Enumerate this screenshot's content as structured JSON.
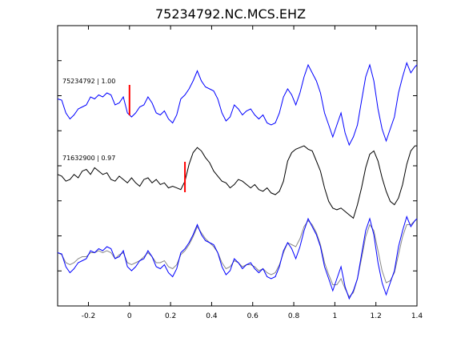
{
  "chart_data": {
    "type": "line",
    "title": "75234792.NC.MCS.EHZ",
    "xlim": [
      -0.35,
      1.4
    ],
    "xticks": [
      -0.2,
      0,
      0.2,
      0.4,
      0.6,
      0.8,
      1,
      1.2,
      1.4
    ],
    "xtick_labels": [
      "-0.2",
      "0",
      "0.2",
      "0.4",
      "0.6",
      "0.8",
      "1",
      "1.2",
      "1.4"
    ],
    "y_tick_count": 7,
    "grid": false,
    "traces": [
      {
        "label": "75234792 | 1.00",
        "color": "#0000ff",
        "pick_x": 0.0,
        "x": [
          -0.35,
          -0.33,
          -0.31,
          -0.29,
          -0.27,
          -0.25,
          -0.23,
          -0.21,
          -0.19,
          -0.17,
          -0.15,
          -0.13,
          -0.11,
          -0.09,
          -0.07,
          -0.05,
          -0.03,
          -0.01,
          0.01,
          0.03,
          0.05,
          0.07,
          0.09,
          0.11,
          0.13,
          0.15,
          0.17,
          0.19,
          0.21,
          0.23,
          0.25,
          0.27,
          0.29,
          0.31,
          0.33,
          0.35,
          0.37,
          0.39,
          0.41,
          0.43,
          0.45,
          0.47,
          0.49,
          0.51,
          0.53,
          0.55,
          0.57,
          0.59,
          0.61,
          0.63,
          0.65,
          0.67,
          0.69,
          0.71,
          0.73,
          0.75,
          0.77,
          0.79,
          0.81,
          0.83,
          0.85,
          0.87,
          0.89,
          0.91,
          0.93,
          0.95,
          0.97,
          0.99,
          1.01,
          1.03,
          1.05,
          1.07,
          1.09,
          1.11,
          1.13,
          1.15,
          1.17,
          1.19,
          1.21,
          1.23,
          1.25,
          1.27,
          1.29,
          1.31,
          1.33,
          1.35,
          1.37,
          1.39,
          1.4
        ],
        "y": [
          0.05,
          0.02,
          -0.3,
          -0.45,
          -0.35,
          -0.2,
          -0.15,
          -0.1,
          0.1,
          0.05,
          0.15,
          0.1,
          0.2,
          0.15,
          -0.1,
          -0.05,
          0.1,
          -0.3,
          -0.4,
          -0.3,
          -0.15,
          -0.1,
          0.1,
          -0.05,
          -0.3,
          -0.35,
          -0.25,
          -0.45,
          -0.55,
          -0.35,
          0.05,
          0.15,
          0.3,
          0.5,
          0.75,
          0.5,
          0.35,
          0.3,
          0.25,
          0.05,
          -0.3,
          -0.5,
          -0.4,
          -0.1,
          -0.2,
          -0.35,
          -0.25,
          -0.2,
          -0.35,
          -0.45,
          -0.35,
          -0.55,
          -0.6,
          -0.55,
          -0.3,
          0.1,
          0.3,
          0.15,
          -0.1,
          0.2,
          0.6,
          0.9,
          0.7,
          0.5,
          0.2,
          -0.3,
          -0.6,
          -0.9,
          -0.6,
          -0.3,
          -0.8,
          -1.1,
          -0.9,
          -0.6,
          0.0,
          0.6,
          0.9,
          0.5,
          -0.2,
          -0.7,
          -1.0,
          -0.7,
          -0.4,
          0.2,
          0.6,
          0.95,
          0.7,
          0.85,
          0.9
        ]
      },
      {
        "label": "71632900 | 0.97",
        "color": "#000000",
        "pick_x": 0.27,
        "x": [
          -0.35,
          -0.33,
          -0.31,
          -0.29,
          -0.27,
          -0.25,
          -0.23,
          -0.21,
          -0.19,
          -0.17,
          -0.15,
          -0.13,
          -0.11,
          -0.09,
          -0.07,
          -0.05,
          -0.03,
          -0.01,
          0.01,
          0.03,
          0.05,
          0.07,
          0.09,
          0.11,
          0.13,
          0.15,
          0.17,
          0.19,
          0.21,
          0.23,
          0.25,
          0.27,
          0.29,
          0.31,
          0.33,
          0.35,
          0.37,
          0.39,
          0.41,
          0.43,
          0.45,
          0.47,
          0.49,
          0.51,
          0.53,
          0.55,
          0.57,
          0.59,
          0.61,
          0.63,
          0.65,
          0.67,
          0.69,
          0.71,
          0.73,
          0.75,
          0.77,
          0.79,
          0.81,
          0.83,
          0.85,
          0.87,
          0.89,
          0.91,
          0.93,
          0.95,
          0.97,
          0.99,
          1.01,
          1.03,
          1.05,
          1.07,
          1.09,
          1.11,
          1.13,
          1.15,
          1.17,
          1.19,
          1.21,
          1.23,
          1.25,
          1.27,
          1.29,
          1.31,
          1.33,
          1.35,
          1.37,
          1.39,
          1.4
        ],
        "y": [
          0.1,
          0.05,
          -0.1,
          -0.05,
          0.1,
          0.0,
          0.2,
          0.25,
          0.1,
          0.3,
          0.2,
          0.1,
          0.15,
          -0.05,
          -0.1,
          0.05,
          -0.05,
          -0.15,
          0.0,
          -0.15,
          -0.25,
          -0.05,
          0.0,
          -0.15,
          -0.05,
          -0.2,
          -0.15,
          -0.3,
          -0.25,
          -0.3,
          -0.35,
          -0.1,
          0.4,
          0.75,
          0.9,
          0.8,
          0.6,
          0.45,
          0.2,
          0.05,
          -0.1,
          -0.15,
          -0.3,
          -0.2,
          -0.05,
          -0.1,
          -0.2,
          -0.3,
          -0.2,
          -0.35,
          -0.4,
          -0.3,
          -0.45,
          -0.5,
          -0.4,
          -0.1,
          0.5,
          0.75,
          0.85,
          0.9,
          0.95,
          0.85,
          0.8,
          0.5,
          0.2,
          -0.3,
          -0.7,
          -0.9,
          -0.95,
          -0.9,
          -1.0,
          -1.1,
          -1.2,
          -0.8,
          -0.3,
          0.3,
          0.7,
          0.8,
          0.5,
          0.0,
          -0.4,
          -0.7,
          -0.8,
          -0.6,
          -0.2,
          0.4,
          0.8,
          0.95,
          0.95
        ]
      }
    ],
    "overlay": {
      "series": [
        {
          "color": "#888888",
          "x": [
            -0.35,
            -0.33,
            -0.31,
            -0.29,
            -0.27,
            -0.25,
            -0.23,
            -0.21,
            -0.19,
            -0.17,
            -0.15,
            -0.13,
            -0.11,
            -0.09,
            -0.07,
            -0.05,
            -0.03,
            -0.01,
            0.01,
            0.03,
            0.05,
            0.07,
            0.09,
            0.11,
            0.13,
            0.15,
            0.17,
            0.19,
            0.21,
            0.23,
            0.25,
            0.27,
            0.29,
            0.31,
            0.33,
            0.35,
            0.37,
            0.39,
            0.41,
            0.43,
            0.45,
            0.47,
            0.49,
            0.51,
            0.53,
            0.55,
            0.57,
            0.59,
            0.61,
            0.63,
            0.65,
            0.67,
            0.69,
            0.71,
            0.73,
            0.75,
            0.77,
            0.79,
            0.81,
            0.83,
            0.85,
            0.87,
            0.89,
            0.91,
            0.93,
            0.95,
            0.97,
            0.99,
            1.01,
            1.03,
            1.05,
            1.07,
            1.09,
            1.11,
            1.13,
            1.15,
            1.17,
            1.19,
            1.21,
            1.23,
            1.25,
            1.27,
            1.29,
            1.31,
            1.33,
            1.35,
            1.37,
            1.39,
            1.4
          ],
          "y": [
            0.05,
            0.0,
            -0.2,
            -0.25,
            -0.2,
            -0.1,
            -0.05,
            -0.05,
            0.05,
            0.05,
            0.1,
            0.05,
            0.1,
            0.05,
            -0.1,
            0.0,
            0.05,
            -0.2,
            -0.25,
            -0.2,
            -0.15,
            -0.05,
            0.05,
            -0.05,
            -0.2,
            -0.2,
            -0.15,
            -0.3,
            -0.35,
            -0.25,
            0.0,
            0.1,
            0.25,
            0.45,
            0.7,
            0.55,
            0.4,
            0.3,
            0.2,
            0.05,
            -0.2,
            -0.35,
            -0.3,
            -0.15,
            -0.2,
            -0.3,
            -0.25,
            -0.25,
            -0.3,
            -0.4,
            -0.35,
            -0.45,
            -0.5,
            -0.45,
            -0.25,
            0.05,
            0.3,
            0.25,
            0.2,
            0.4,
            0.7,
            0.85,
            0.75,
            0.55,
            0.25,
            -0.2,
            -0.5,
            -0.75,
            -0.75,
            -0.6,
            -0.85,
            -1.05,
            -0.95,
            -0.6,
            -0.1,
            0.45,
            0.75,
            0.6,
            0.1,
            -0.4,
            -0.7,
            -0.65,
            -0.45,
            0.0,
            0.45,
            0.75,
            0.75,
            0.85,
            0.88
          ]
        },
        {
          "color": "#0000ff",
          "x": [
            -0.35,
            -0.33,
            -0.31,
            -0.29,
            -0.27,
            -0.25,
            -0.23,
            -0.21,
            -0.19,
            -0.17,
            -0.15,
            -0.13,
            -0.11,
            -0.09,
            -0.07,
            -0.05,
            -0.03,
            -0.01,
            0.01,
            0.03,
            0.05,
            0.07,
            0.09,
            0.11,
            0.13,
            0.15,
            0.17,
            0.19,
            0.21,
            0.23,
            0.25,
            0.27,
            0.29,
            0.31,
            0.33,
            0.35,
            0.37,
            0.39,
            0.41,
            0.43,
            0.45,
            0.47,
            0.49,
            0.51,
            0.53,
            0.55,
            0.57,
            0.59,
            0.61,
            0.63,
            0.65,
            0.67,
            0.69,
            0.71,
            0.73,
            0.75,
            0.77,
            0.79,
            0.81,
            0.83,
            0.85,
            0.87,
            0.89,
            0.91,
            0.93,
            0.95,
            0.97,
            0.99,
            1.01,
            1.03,
            1.05,
            1.07,
            1.09,
            1.11,
            1.13,
            1.15,
            1.17,
            1.19,
            1.21,
            1.23,
            1.25,
            1.27,
            1.29,
            1.31,
            1.33,
            1.35,
            1.37,
            1.39,
            1.4
          ],
          "y": [
            0.05,
            0.02,
            -0.3,
            -0.45,
            -0.35,
            -0.2,
            -0.15,
            -0.1,
            0.1,
            0.05,
            0.15,
            0.1,
            0.2,
            0.15,
            -0.1,
            -0.05,
            0.1,
            -0.3,
            -0.4,
            -0.3,
            -0.15,
            -0.1,
            0.1,
            -0.05,
            -0.3,
            -0.35,
            -0.25,
            -0.45,
            -0.55,
            -0.35,
            0.05,
            0.15,
            0.3,
            0.5,
            0.75,
            0.5,
            0.35,
            0.3,
            0.25,
            0.05,
            -0.3,
            -0.5,
            -0.4,
            -0.1,
            -0.2,
            -0.35,
            -0.25,
            -0.2,
            -0.35,
            -0.45,
            -0.35,
            -0.55,
            -0.6,
            -0.55,
            -0.3,
            0.1,
            0.3,
            0.15,
            -0.1,
            0.2,
            0.6,
            0.9,
            0.7,
            0.5,
            0.2,
            -0.3,
            -0.6,
            -0.9,
            -0.6,
            -0.3,
            -0.8,
            -1.1,
            -0.9,
            -0.6,
            0.0,
            0.6,
            0.9,
            0.5,
            -0.2,
            -0.7,
            -1.0,
            -0.7,
            -0.4,
            0.2,
            0.6,
            0.95,
            0.7,
            0.85,
            0.9
          ]
        }
      ]
    },
    "colors": {
      "pick": "#ff0000",
      "axis": "#000000"
    }
  }
}
